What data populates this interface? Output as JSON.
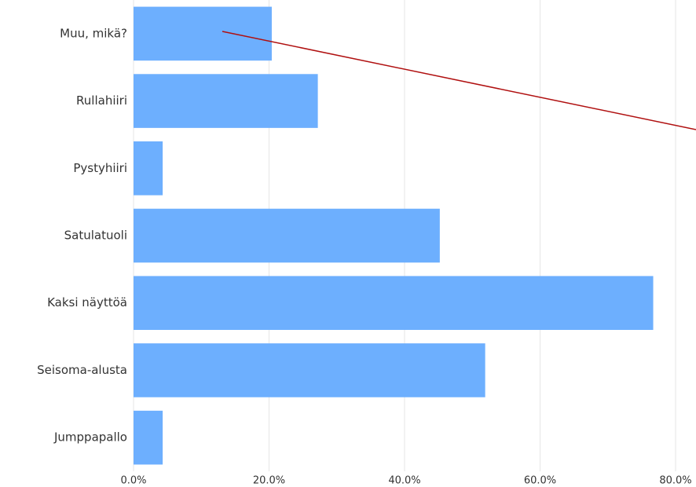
{
  "chart_data": {
    "type": "bar",
    "orientation": "horizontal",
    "categories": [
      "Muu, mikä?",
      "Rullahiiri",
      "Pystyhiiri",
      "Satulatuoli",
      "Kaksi näyttöä",
      "Seisoma-alusta",
      "Jumppapallo"
    ],
    "values": [
      20.4,
      27.2,
      4.3,
      45.2,
      76.7,
      51.9,
      4.3
    ],
    "color": "#6daffe",
    "xlim": [
      0,
      80
    ],
    "xticks": [
      {
        "value": 0,
        "label": "0.0%"
      },
      {
        "value": 20,
        "label": "20.0%"
      },
      {
        "value": 40,
        "label": "40.0%"
      },
      {
        "value": 60,
        "label": "60.0%"
      },
      {
        "value": 80,
        "label": "80.0%"
      }
    ],
    "grid": true
  }
}
